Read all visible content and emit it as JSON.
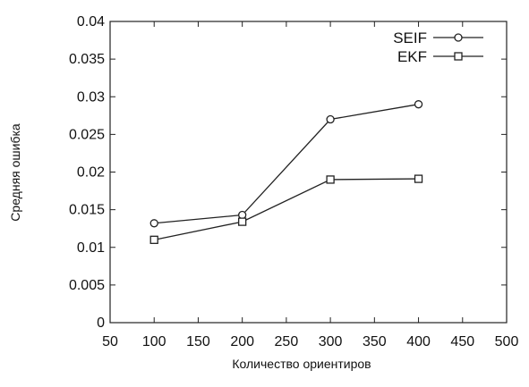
{
  "chart_data": {
    "type": "line",
    "xlabel": "Количество ориентиров",
    "ylabel": "Средняя ошибка",
    "xlim": [
      50,
      500
    ],
    "ylim": [
      0,
      0.04
    ],
    "xticks": [
      "50",
      "100",
      "150",
      "200",
      "250",
      "300",
      "350",
      "400",
      "450",
      "500"
    ],
    "yticks": [
      "0",
      "0.005",
      "0.01",
      "0.015",
      "0.02",
      "0.025",
      "0.03",
      "0.035",
      "0.04"
    ],
    "grid": false,
    "legend_position": "top-right",
    "series": [
      {
        "name": "SEIF",
        "marker": "circle",
        "color": "#222222",
        "x": [
          100,
          200,
          300,
          400
        ],
        "y": [
          0.0132,
          0.0143,
          0.027,
          0.029
        ]
      },
      {
        "name": "EKF",
        "marker": "square",
        "color": "#222222",
        "x": [
          100,
          200,
          300,
          400
        ],
        "y": [
          0.011,
          0.0134,
          0.019,
          0.0191
        ]
      }
    ]
  }
}
